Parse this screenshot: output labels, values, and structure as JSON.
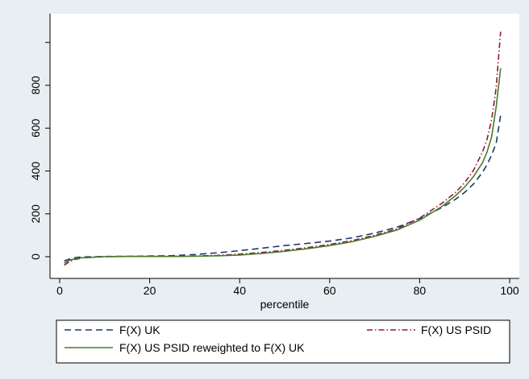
{
  "chart_data": {
    "type": "line",
    "title": "",
    "xlabel": "percentile",
    "ylabel": "",
    "xlim": [
      0,
      100
    ],
    "ylim": [
      -100,
      1100
    ],
    "xticks": [
      0,
      20,
      40,
      60,
      80,
      100
    ],
    "yticks": [
      0,
      200,
      400,
      600,
      800
    ],
    "ytick_labels": [
      "0",
      "200",
      "400",
      "600",
      "800"
    ],
    "extra_y_tick_marks": [
      1000
    ],
    "grid": false,
    "legend_position": "bottom",
    "colors": {
      "page_bg": "#e8eef2",
      "plot_bg": "#ffffff"
    },
    "series": [
      {
        "name": "F(X) UK",
        "color": "#1a3a6b",
        "dash": "8,5",
        "points": [
          [
            1,
            -20
          ],
          [
            2,
            -12
          ],
          [
            3,
            -6
          ],
          [
            4,
            -3
          ],
          [
            5,
            -1
          ],
          [
            8,
            0
          ],
          [
            10,
            1
          ],
          [
            15,
            2
          ],
          [
            20,
            3
          ],
          [
            25,
            5
          ],
          [
            30,
            10
          ],
          [
            35,
            18
          ],
          [
            40,
            28
          ],
          [
            45,
            40
          ],
          [
            50,
            52
          ],
          [
            55,
            62
          ],
          [
            60,
            73
          ],
          [
            65,
            88
          ],
          [
            70,
            110
          ],
          [
            75,
            138
          ],
          [
            80,
            178
          ],
          [
            85,
            230
          ],
          [
            88,
            268
          ],
          [
            90,
            300
          ],
          [
            92,
            340
          ],
          [
            94,
            395
          ],
          [
            95,
            430
          ],
          [
            96,
            475
          ],
          [
            97,
            530
          ],
          [
            98,
            660
          ]
        ]
      },
      {
        "name": "F(X) US PSID",
        "color": "#8b1a3c",
        "dash": "7,3,1.5,3",
        "points": [
          [
            1,
            -40
          ],
          [
            2,
            -25
          ],
          [
            3,
            -15
          ],
          [
            4,
            -10
          ],
          [
            5,
            -6
          ],
          [
            8,
            -2
          ],
          [
            10,
            0
          ],
          [
            15,
            1
          ],
          [
            20,
            1
          ],
          [
            25,
            2
          ],
          [
            30,
            3
          ],
          [
            35,
            6
          ],
          [
            40,
            12
          ],
          [
            45,
            20
          ],
          [
            50,
            30
          ],
          [
            55,
            42
          ],
          [
            60,
            57
          ],
          [
            65,
            75
          ],
          [
            70,
            100
          ],
          [
            75,
            130
          ],
          [
            80,
            180
          ],
          [
            85,
            250
          ],
          [
            88,
            300
          ],
          [
            90,
            345
          ],
          [
            92,
            405
          ],
          [
            94,
            490
          ],
          [
            95,
            550
          ],
          [
            96,
            640
          ],
          [
            97,
            790
          ],
          [
            98,
            1050
          ]
        ]
      },
      {
        "name": "F(X) US PSID reweighted to F(X) UK",
        "color": "#4a7a2c",
        "dash": "",
        "points": [
          [
            1,
            -30
          ],
          [
            2,
            -18
          ],
          [
            3,
            -12
          ],
          [
            4,
            -8
          ],
          [
            5,
            -5
          ],
          [
            8,
            -2
          ],
          [
            10,
            0
          ],
          [
            15,
            1
          ],
          [
            20,
            1
          ],
          [
            25,
            1
          ],
          [
            30,
            2
          ],
          [
            35,
            4
          ],
          [
            40,
            8
          ],
          [
            45,
            15
          ],
          [
            50,
            25
          ],
          [
            55,
            37
          ],
          [
            60,
            52
          ],
          [
            65,
            70
          ],
          [
            70,
            95
          ],
          [
            75,
            125
          ],
          [
            80,
            170
          ],
          [
            85,
            235
          ],
          [
            88,
            285
          ],
          [
            90,
            325
          ],
          [
            92,
            375
          ],
          [
            94,
            440
          ],
          [
            95,
            490
          ],
          [
            96,
            560
          ],
          [
            97,
            700
          ],
          [
            98,
            880
          ]
        ]
      }
    ]
  }
}
